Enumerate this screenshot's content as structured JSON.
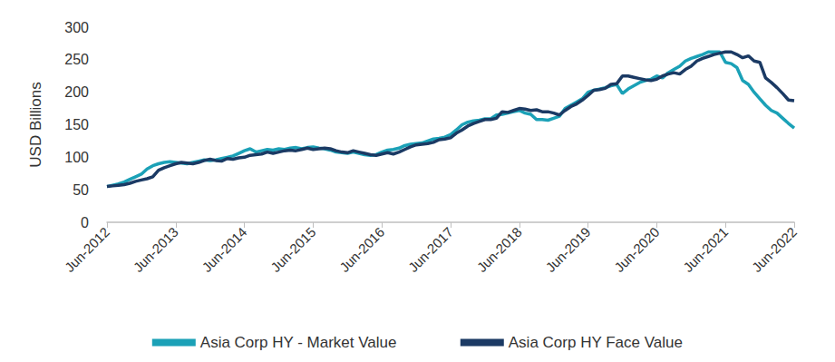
{
  "chart_data": {
    "type": "line",
    "y_label": "USD Billions",
    "categories": [
      "Jun-2012",
      null,
      null,
      null,
      null,
      null,
      null,
      null,
      null,
      null,
      null,
      null,
      "Jun-2013",
      null,
      null,
      null,
      null,
      null,
      null,
      null,
      null,
      null,
      null,
      null,
      "Jun-2014",
      null,
      null,
      null,
      null,
      null,
      null,
      null,
      null,
      null,
      null,
      null,
      "Jun-2015",
      null,
      null,
      null,
      null,
      null,
      null,
      null,
      null,
      null,
      null,
      null,
      "Jun-2016",
      null,
      null,
      null,
      null,
      null,
      null,
      null,
      null,
      null,
      null,
      null,
      "Jun-2017",
      null,
      null,
      null,
      null,
      null,
      null,
      null,
      null,
      null,
      null,
      null,
      "Jun-2018",
      null,
      null,
      null,
      null,
      null,
      null,
      null,
      null,
      null,
      null,
      null,
      "Jun-2019",
      null,
      null,
      null,
      null,
      null,
      null,
      null,
      null,
      null,
      null,
      null,
      "Jun-2020",
      null,
      null,
      null,
      null,
      null,
      null,
      null,
      null,
      null,
      null,
      null,
      "Jun-2021",
      null,
      null,
      null,
      null,
      null,
      null,
      null,
      null,
      null,
      null,
      null,
      "Jun-2022"
    ],
    "series": [
      {
        "name": "Asia Corp HY - Market Value",
        "color": "#1ba1b7",
        "values": [
          55,
          57,
          59,
          62,
          66,
          70,
          74,
          82,
          87,
          90,
          92,
          93,
          92,
          91,
          90,
          92,
          94,
          96,
          95,
          96,
          98,
          100,
          102,
          106,
          110,
          113,
          108,
          110,
          112,
          111,
          113,
          112,
          114,
          115,
          113,
          115,
          116,
          114,
          113,
          111,
          108,
          107,
          106,
          108,
          106,
          104,
          103,
          104,
          108,
          111,
          112,
          114,
          118,
          120,
          121,
          122,
          125,
          128,
          129,
          131,
          135,
          142,
          150,
          154,
          156,
          157,
          159,
          159,
          165,
          166,
          168,
          170,
          172,
          168,
          166,
          158,
          158,
          157,
          160,
          163,
          175,
          180,
          185,
          190,
          200,
          203,
          205,
          207,
          210,
          212,
          198,
          205,
          210,
          215,
          218,
          220,
          225,
          222,
          230,
          235,
          240,
          248,
          252,
          255,
          258,
          262,
          262,
          262,
          246,
          244,
          238,
          218,
          212,
          200,
          190,
          180,
          172,
          168,
          160,
          152,
          145
        ]
      },
      {
        "name": "Asia Corp HY Face Value",
        "color": "#1b3a64",
        "values": [
          55,
          56,
          57,
          58,
          60,
          63,
          65,
          67,
          70,
          80,
          84,
          87,
          90,
          92,
          91,
          90,
          92,
          95,
          97,
          95,
          94,
          98,
          97,
          99,
          100,
          103,
          104,
          105,
          108,
          106,
          108,
          110,
          111,
          110,
          112,
          114,
          112,
          113,
          114,
          113,
          110,
          108,
          107,
          110,
          108,
          106,
          104,
          103,
          105,
          107,
          105,
          108,
          112,
          116,
          119,
          120,
          121,
          123,
          127,
          128,
          130,
          137,
          142,
          148,
          152,
          155,
          158,
          158,
          160,
          170,
          169,
          172,
          175,
          174,
          172,
          173,
          170,
          170,
          168,
          165,
          172,
          178,
          182,
          188,
          195,
          203,
          204,
          206,
          212,
          213,
          225,
          225,
          223,
          221,
          219,
          218,
          220,
          225,
          228,
          230,
          228,
          235,
          240,
          248,
          252,
          255,
          258,
          260,
          262,
          262,
          258,
          253,
          256,
          248,
          246,
          222,
          215,
          207,
          198,
          188,
          187
        ]
      }
    ],
    "ylim": [
      0,
      300
    ],
    "yticks": [
      0,
      50,
      100,
      150,
      200,
      250,
      300
    ],
    "grid": false,
    "legend": "bottom"
  }
}
